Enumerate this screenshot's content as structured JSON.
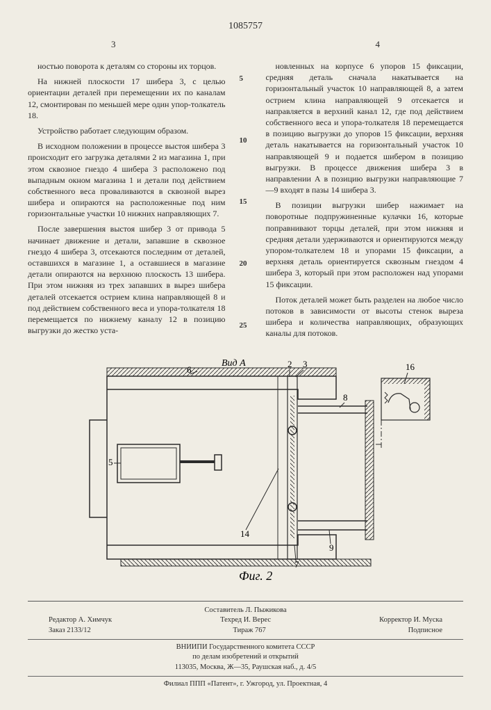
{
  "doc_number": "1085757",
  "page_left": "3",
  "page_right": "4",
  "line_markers": [
    "5",
    "10",
    "15",
    "20",
    "25"
  ],
  "left_column": [
    "ностью поворота к деталям со стороны их торцов.",
    "На нижней плоскости 17 шибера 3, с целью ориентации деталей при перемещении их по каналам 12, смонтирован по меньшей мере один упор-толкатель 18.",
    "Устройство работает следующим образом.",
    "В исходном положении в процессе выстоя шибера 3 происходит его загрузка деталями 2 из магазина 1, при этом сквозное гнездо 4 шибера 3 расположено под выпадным окном магазина 1 и детали под действием собственного веса проваливаются в сквозной вырез шибера и опираются на расположенные под ним горизонтальные участки 10 нижних направляющих 7.",
    "После завершения выстоя шибер 3 от привода 5 начинает движение и детали, запавшие в сквозное гнездо 4 шибера 3, отсекаются последним от деталей, оставшихся в магазине 1, а оставшиеся в магазине детали опираются на верхнюю плоскость 13 шибера. При этом нижняя из трех запавших в вырез шибера деталей отсекается острием клина направляющей 8 и под действием собственного веса и упора-толкателя 18 перемещается по нижнему каналу 12 в позицию выгрузки до жестко уста-"
  ],
  "right_column": [
    "новленных на корпусе 6 упоров 15 фиксации, средняя деталь сначала накатывается на горизонтальный участок 10 направляющей 8, а затем острием клина направляющей 9 отсекается и направляется в верхний канал 12, где под действием собственного веса и упора-толкателя 18 перемещается в позицию выгрузки до упоров 15 фиксации, верхняя деталь накатывается на горизонтальный участок 10 направляющей 9 и подается шибером в позицию выгрузки. В процессе движения шибера 3 в направлении А в позицию выгрузки направляющие 7—9 входят в пазы 14 шибера 3.",
    "В позиции выгрузки шибер нажимает на поворотные подпружиненные кулачки 16, которые поправнивают торцы деталей, при этом нижняя и средняя детали удерживаются и ориентируются между упором-толкателем 18 и упорами 15 фиксации, а верхняя деталь ориентируется сквозным гнездом 4 шибера 3, который при этом расположен над упорами 15 фиксации.",
    "Поток деталей может быть разделен на любое число потоков в зависимости от высоты стенок выреза шибера и количества направляющих, образующих каналы для потоков."
  ],
  "figure": {
    "view_label": "Вид А",
    "caption": "Фиг. 2",
    "callouts": [
      "6",
      "2",
      "3",
      "8",
      "16",
      "5",
      "14",
      "7",
      "9"
    ],
    "stroke": "#2a2a2a",
    "hatch": "#2a2a2a"
  },
  "footer": {
    "compiler": "Составитель Л. Пыжикова",
    "editor": "Редактор А. Химчук",
    "tech": "Техред И. Верес",
    "corrector": "Корректор И. Муска",
    "order": "Заказ 2133/12",
    "tirage": "Тираж 767",
    "signed": "Подписное",
    "org1": "ВНИИПИ Государственного комитета СССР",
    "org2": "по делам изобретений и открытий",
    "addr1": "113035, Москва, Ж—35, Раушская наб., д. 4/5",
    "addr2": "Филиал ППП «Патент», г. Ужгород, ул. Проектная, 4"
  }
}
